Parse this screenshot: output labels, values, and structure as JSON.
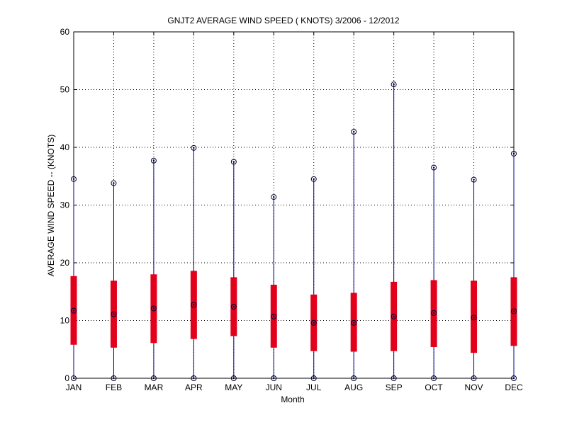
{
  "chart_data": {
    "type": "box",
    "title": "GNJT2  AVERAGE WIND SPEED ( KNOTS) 3/2006 - 12/2012",
    "xlabel": "Month",
    "ylabel": "AVERAGE WIND SPEED -- (KNOTS)",
    "ylim": [
      0,
      60
    ],
    "yticks": [
      0,
      10,
      20,
      30,
      40,
      50,
      60
    ],
    "grid": true,
    "categories": [
      "JAN",
      "FEB",
      "MAR",
      "APR",
      "MAY",
      "JUN",
      "JUL",
      "AUG",
      "SEP",
      "OCT",
      "NOV",
      "DEC"
    ],
    "min": [
      0,
      0,
      0,
      0,
      0,
      0,
      0,
      0,
      0,
      0,
      0,
      0
    ],
    "q1": [
      5.8,
      5.3,
      6.1,
      6.8,
      7.3,
      5.3,
      4.7,
      4.6,
      4.7,
      5.4,
      4.4,
      5.6
    ],
    "median": [
      11.7,
      11.1,
      12.1,
      12.7,
      12.4,
      10.7,
      9.6,
      9.6,
      10.7,
      11.3,
      10.5,
      11.6
    ],
    "q3": [
      17.7,
      16.9,
      18.0,
      18.6,
      17.5,
      16.2,
      14.5,
      14.8,
      16.7,
      17.0,
      16.9,
      17.5
    ],
    "max": [
      34.5,
      33.8,
      37.7,
      39.9,
      37.5,
      31.4,
      34.5,
      42.7,
      50.9,
      36.5,
      34.4,
      38.9
    ],
    "colors": {
      "whisker": "#00008b",
      "box": "#e3001b",
      "marker": "#000033",
      "grid": "#000000"
    }
  }
}
